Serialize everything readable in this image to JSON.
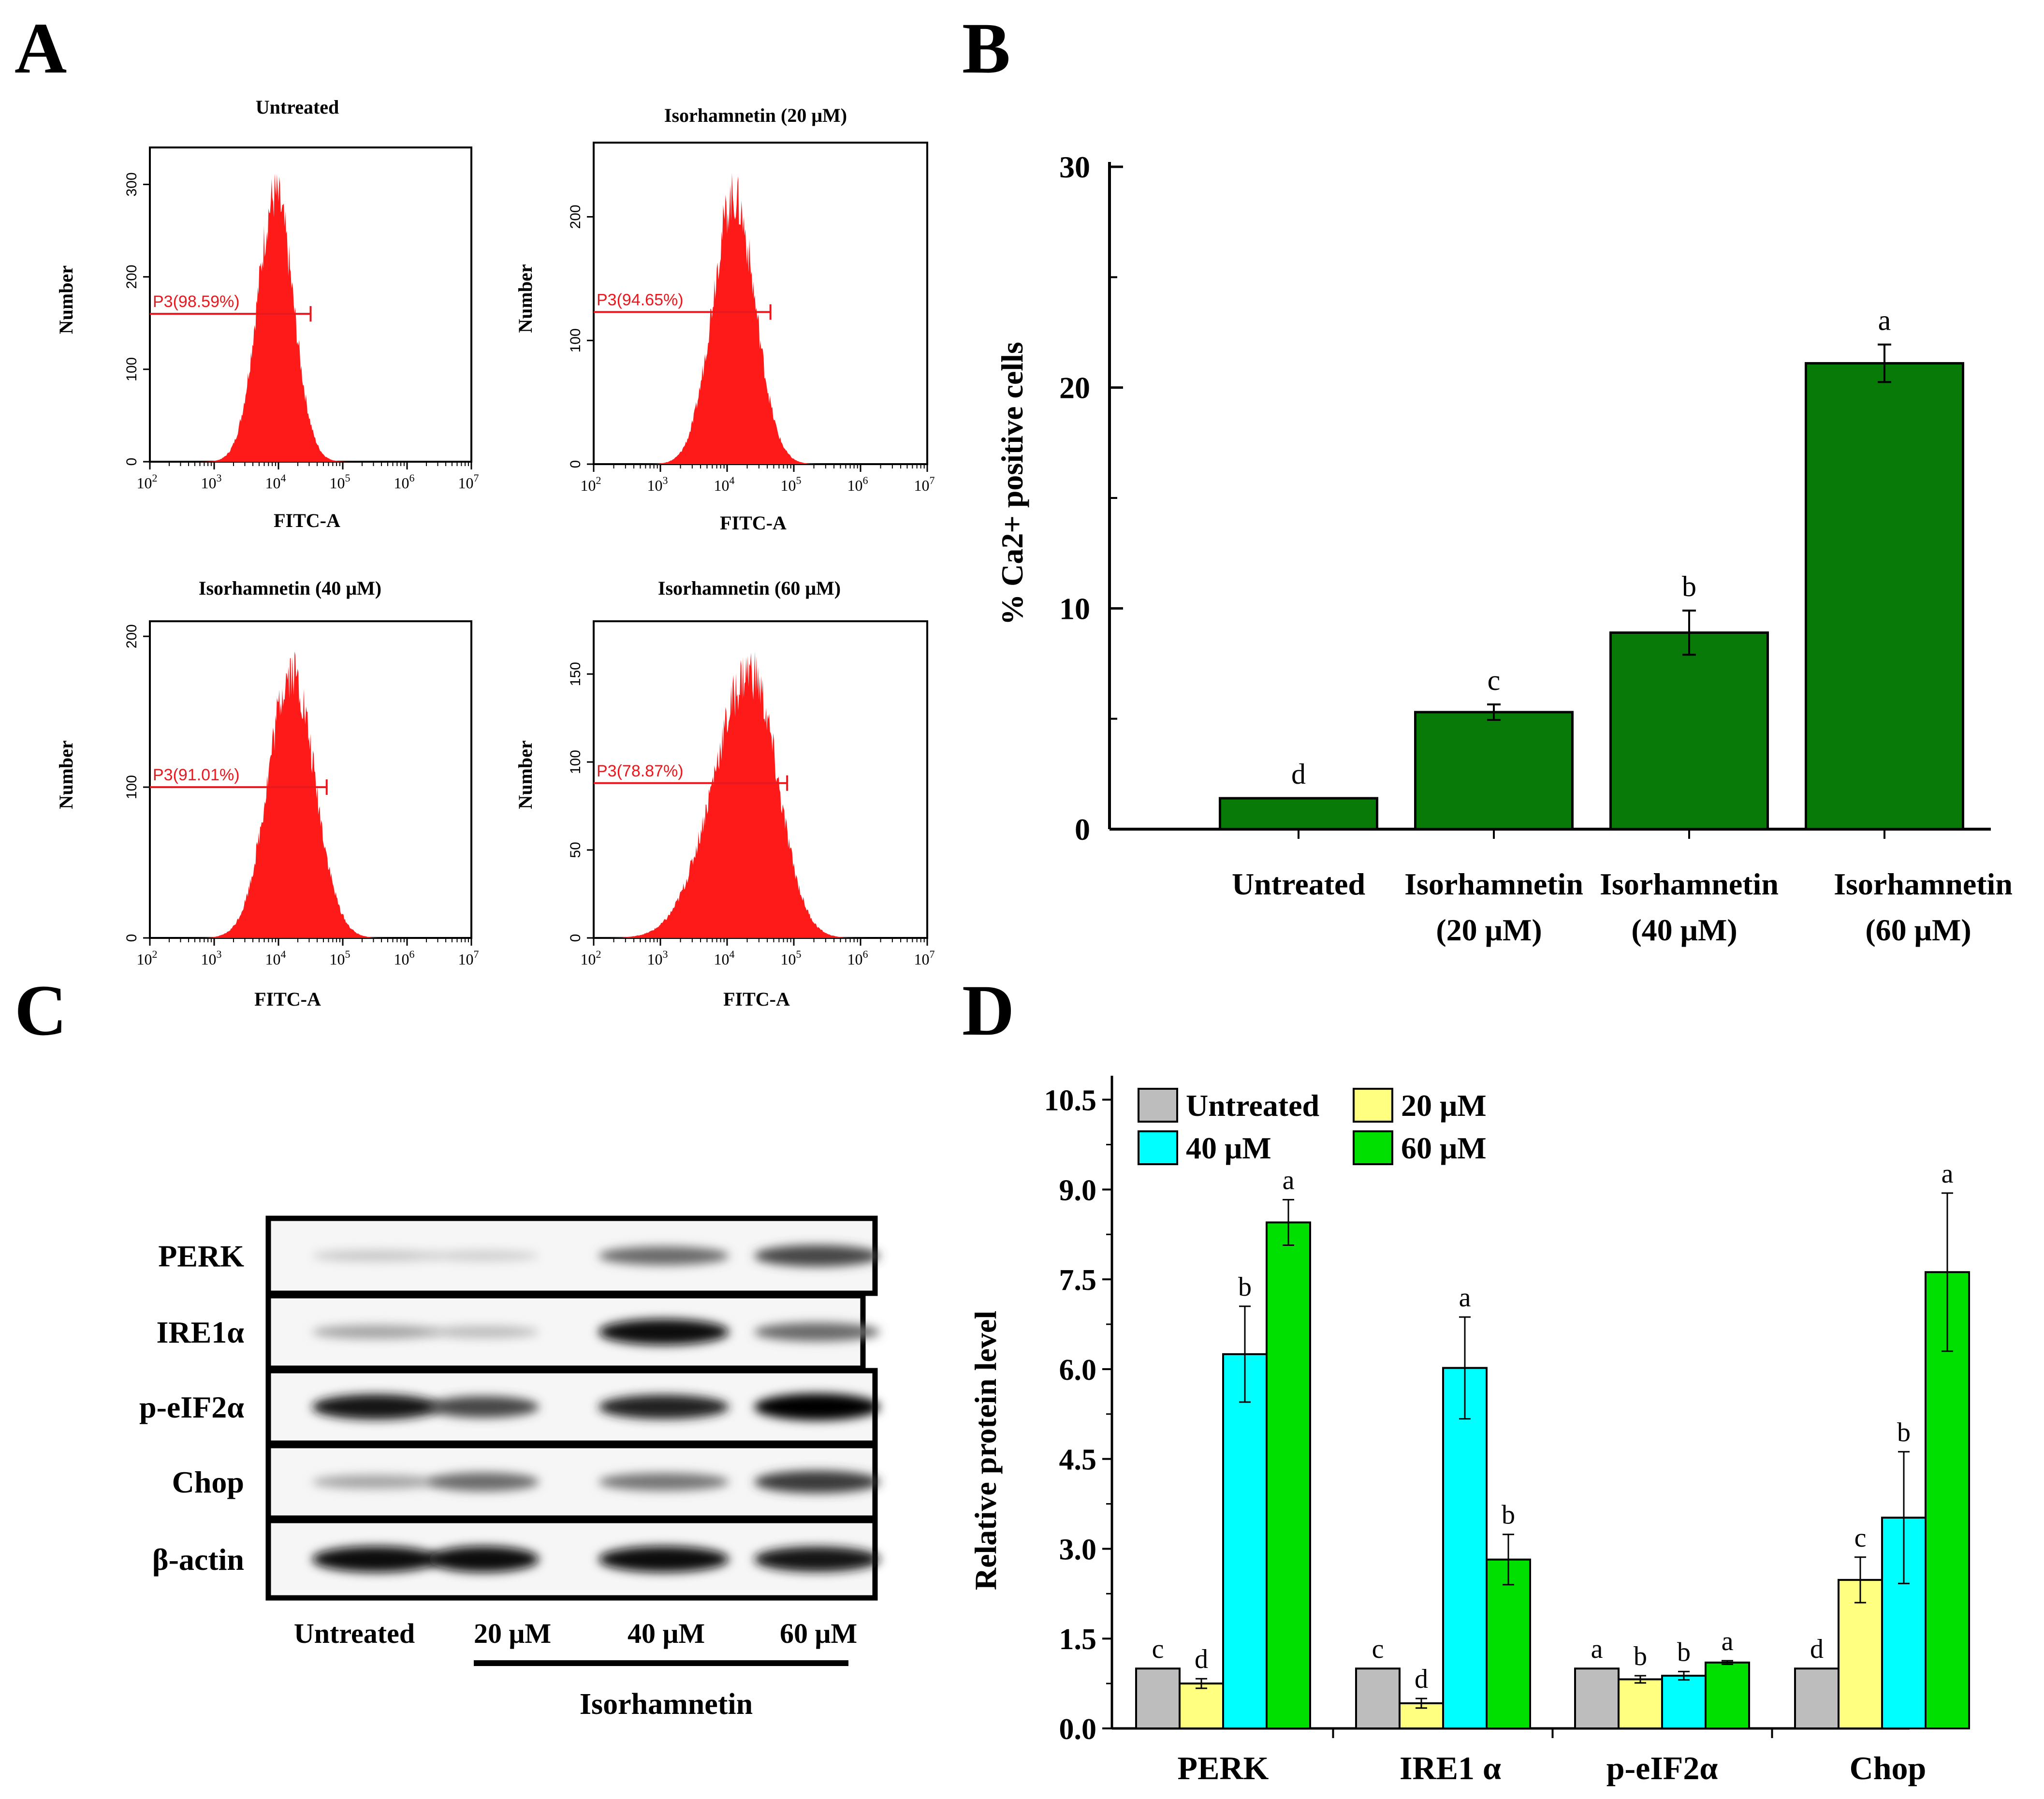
{
  "panels": {
    "A": "A",
    "B": "B",
    "C": "C",
    "D": "D"
  },
  "colors": {
    "histogram": "#ff1a1a",
    "gate": "#e8191e",
    "barB": "#087a08",
    "untreated": "#bdbdbd",
    "c20": "#ffff80",
    "c40": "#00ffff",
    "c60": "#00e000"
  },
  "chart_data": [
    {
      "id": "A",
      "type": "histogram",
      "xlabel": "FITC-A",
      "ylabel": "Number",
      "x_ticks": [
        {
          "base": "10",
          "exp": "2"
        },
        {
          "base": "10",
          "exp": "3"
        },
        {
          "base": "10",
          "exp": "4"
        },
        {
          "base": "10",
          "exp": "5"
        },
        {
          "base": "10",
          "exp": "6"
        },
        {
          "base": "10",
          "exp": "7"
        }
      ],
      "xlim_log10": [
        2,
        7
      ],
      "subplots": [
        {
          "title": "Untreated",
          "gate": "P3(98.59%)",
          "ymax": 340,
          "yticks": [
            "0",
            "100",
            "200",
            "300"
          ],
          "ytick_values": [
            0,
            100,
            200,
            300
          ],
          "peak_log10": 3.95,
          "peak_count": 300,
          "gate_y": 160
        },
        {
          "title": "Isorhamnetin (20 μM)",
          "gate": "P3(94.65%)",
          "ymax": 260,
          "yticks": [
            "0",
            "100",
            "200"
          ],
          "ytick_values": [
            0,
            100,
            200
          ],
          "peak_log10": 4.1,
          "peak_count": 225,
          "gate_y": 123
        },
        {
          "title": "Isorhamnetin (40 μM)",
          "gate": "P3(91.01%)",
          "ymax": 210,
          "yticks": [
            "0",
            "100",
            "200"
          ],
          "ytick_values": [
            0,
            100,
            200
          ],
          "peak_log10": 4.2,
          "peak_count": 185,
          "gate_y": 100
        },
        {
          "title": "Isorhamnetin (60 μM)",
          "gate": "P3(78.87%)",
          "ymax": 180,
          "yticks": [
            "0",
            "50",
            "100",
            "150"
          ],
          "ytick_values": [
            0,
            50,
            100,
            150
          ],
          "peak_log10": 4.35,
          "peak_count": 158,
          "gate_y": 88
        }
      ]
    },
    {
      "id": "B",
      "type": "bar",
      "ylabel": "% Ca2+ positive cells",
      "ylim": [
        0,
        30
      ],
      "yticks": [
        "0",
        "10",
        "20",
        "30"
      ],
      "ytick_values": [
        0,
        10,
        20,
        30
      ],
      "categories": [
        {
          "line1": "Untreated",
          "line2": ""
        },
        {
          "line1": "Isorhamnetin",
          "line2": "(20 μM)"
        },
        {
          "line1": "Isorhamnetin",
          "line2": "(40 μM)"
        },
        {
          "line1": "Isorhamnetin",
          "line2": "(60 μM)"
        }
      ],
      "values": [
        1.4,
        5.3,
        8.9,
        21.1
      ],
      "errors": [
        0,
        0.35,
        1.0,
        0.85
      ],
      "letters": [
        "d",
        "c",
        "b",
        "a"
      ]
    },
    {
      "id": "C",
      "type": "western-blot",
      "rows": [
        "PERK",
        "IRE1α",
        "p-eIF2α",
        "Chop",
        "β-actin"
      ],
      "lanes": [
        "Untreated",
        "20 μM",
        "40 μM",
        "60 μM"
      ],
      "group_label": "Isorhamnetin",
      "band_intensity": [
        [
          0.15,
          0.12,
          0.55,
          0.7
        ],
        [
          0.3,
          0.2,
          0.95,
          0.55
        ],
        [
          0.9,
          0.7,
          0.85,
          1.0
        ],
        [
          0.3,
          0.55,
          0.5,
          0.75
        ],
        [
          0.95,
          0.95,
          0.95,
          0.9
        ]
      ]
    },
    {
      "id": "D",
      "type": "grouped-bar",
      "ylabel": "Relative protein level",
      "ylim": [
        0,
        10.9
      ],
      "yticks": [
        "0.0",
        "1.5",
        "3.0",
        "4.5",
        "6.0",
        "7.5",
        "9.0",
        "10.5"
      ],
      "ytick_values": [
        0,
        1.5,
        3.0,
        4.5,
        6.0,
        7.5,
        9.0,
        10.5
      ],
      "categories": [
        "PERK",
        "IRE1 α",
        "p-eIF2α",
        "Chop"
      ],
      "legend": [
        "Untreated",
        "20 μM",
        "40 μM",
        "60 μM"
      ],
      "series": [
        {
          "name": "Untreated",
          "values": [
            1.0,
            1.0,
            1.0,
            1.0
          ],
          "errors": [
            0,
            0,
            0,
            0
          ],
          "letters": [
            "c",
            "c",
            "a",
            "d"
          ]
        },
        {
          "name": "20 μM",
          "values": [
            0.75,
            0.42,
            0.82,
            2.48
          ],
          "errors": [
            0.08,
            0.08,
            0.06,
            0.38
          ],
          "letters": [
            "d",
            "d",
            "b",
            "c"
          ]
        },
        {
          "name": "40 μM",
          "values": [
            6.25,
            6.02,
            0.88,
            3.52
          ],
          "errors": [
            0.8,
            0.85,
            0.07,
            1.1
          ],
          "letters": [
            "b",
            "a",
            "b",
            "b"
          ]
        },
        {
          "name": "60 μM",
          "values": [
            8.45,
            2.82,
            1.1,
            7.62
          ],
          "errors": [
            0.38,
            0.42,
            0.03,
            1.32
          ],
          "letters": [
            "a",
            "b",
            "a",
            "a"
          ]
        }
      ]
    }
  ]
}
